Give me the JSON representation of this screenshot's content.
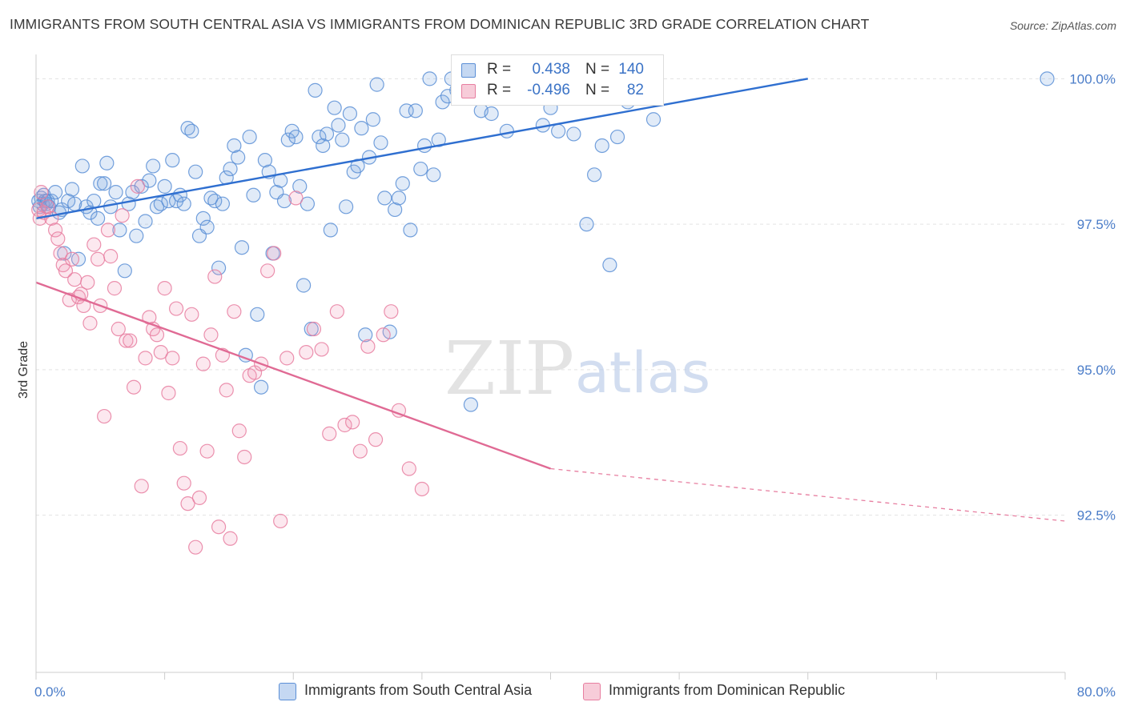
{
  "header": {
    "title": "IMMIGRANTS FROM SOUTH CENTRAL ASIA VS IMMIGRANTS FROM DOMINICAN REPUBLIC 3RD GRADE CORRELATION CHART",
    "source": "Source: ZipAtlas.com"
  },
  "watermark": {
    "zip": "ZIP",
    "atlas": "atlas"
  },
  "legend": {
    "r_label": "R =",
    "n_label": "N =",
    "series": [
      {
        "r": "0.438",
        "n": "140",
        "color": "#5b8fd6"
      },
      {
        "r": "-0.496",
        "n": "82",
        "color": "#e77ea0"
      }
    ]
  },
  "chart_data": {
    "type": "scatter",
    "xlabel": "",
    "ylabel": "3rd Grade",
    "xlim": [
      0,
      80
    ],
    "ylim": [
      89.8,
      100.5
    ],
    "x_tick_labels": [
      "0.0%",
      "80.0%"
    ],
    "y_ticks": [
      92.5,
      95.0,
      97.5,
      100.0
    ],
    "y_tick_labels": [
      "92.5%",
      "95.0%",
      "97.5%",
      "100.0%"
    ],
    "grid": true,
    "legend_position": "top-center",
    "series": [
      {
        "name": "Immigrants from South Central Asia",
        "color": "#5b8fd6",
        "trend": {
          "x": [
            0,
            60
          ],
          "y": [
            97.6,
            100.0
          ]
        },
        "points": [
          [
            0.2,
            97.9
          ],
          [
            0.3,
            97.8
          ],
          [
            0.4,
            97.95
          ],
          [
            0.5,
            97.85
          ],
          [
            0.6,
            98.0
          ],
          [
            0.7,
            97.9
          ],
          [
            0.8,
            97.85
          ],
          [
            0.9,
            97.9
          ],
          [
            1.0,
            97.8
          ],
          [
            1.2,
            97.9
          ],
          [
            1.5,
            98.05
          ],
          [
            1.8,
            97.7
          ],
          [
            2.0,
            97.75
          ],
          [
            2.2,
            97.0
          ],
          [
            2.5,
            97.9
          ],
          [
            2.8,
            98.1
          ],
          [
            3.0,
            97.85
          ],
          [
            3.3,
            96.9
          ],
          [
            3.6,
            98.5
          ],
          [
            3.9,
            97.8
          ],
          [
            4.2,
            97.7
          ],
          [
            4.5,
            97.9
          ],
          [
            4.8,
            97.6
          ],
          [
            5.0,
            98.2
          ],
          [
            5.3,
            98.2
          ],
          [
            5.5,
            98.55
          ],
          [
            5.8,
            97.8
          ],
          [
            6.2,
            98.05
          ],
          [
            6.5,
            97.4
          ],
          [
            6.9,
            96.7
          ],
          [
            7.2,
            97.85
          ],
          [
            7.5,
            98.05
          ],
          [
            7.8,
            97.3
          ],
          [
            8.2,
            98.15
          ],
          [
            8.5,
            97.55
          ],
          [
            8.8,
            98.25
          ],
          [
            9.1,
            98.5
          ],
          [
            9.4,
            97.8
          ],
          [
            9.7,
            97.85
          ],
          [
            10.0,
            98.15
          ],
          [
            10.3,
            97.9
          ],
          [
            10.6,
            98.6
          ],
          [
            10.9,
            97.9
          ],
          [
            11.2,
            98.0
          ],
          [
            11.5,
            97.85
          ],
          [
            11.8,
            99.15
          ],
          [
            12.1,
            99.1
          ],
          [
            12.4,
            98.4
          ],
          [
            12.7,
            97.3
          ],
          [
            13.0,
            97.6
          ],
          [
            13.3,
            97.45
          ],
          [
            13.6,
            97.95
          ],
          [
            13.9,
            97.9
          ],
          [
            14.2,
            96.75
          ],
          [
            14.5,
            97.85
          ],
          [
            14.8,
            98.3
          ],
          [
            15.1,
            98.45
          ],
          [
            15.4,
            98.85
          ],
          [
            15.7,
            98.65
          ],
          [
            16.0,
            97.1
          ],
          [
            16.3,
            95.25
          ],
          [
            16.6,
            99.0
          ],
          [
            16.9,
            98.0
          ],
          [
            17.2,
            95.95
          ],
          [
            17.5,
            94.7
          ],
          [
            17.8,
            98.6
          ],
          [
            18.1,
            98.4
          ],
          [
            18.4,
            97.0
          ],
          [
            18.7,
            98.05
          ],
          [
            19.0,
            98.25
          ],
          [
            19.3,
            97.9
          ],
          [
            19.6,
            98.95
          ],
          [
            19.9,
            99.1
          ],
          [
            20.2,
            99.0
          ],
          [
            20.5,
            98.15
          ],
          [
            20.8,
            96.45
          ],
          [
            21.1,
            97.85
          ],
          [
            21.4,
            95.7
          ],
          [
            21.7,
            99.8
          ],
          [
            22.0,
            99.0
          ],
          [
            22.3,
            98.85
          ],
          [
            22.6,
            99.05
          ],
          [
            22.9,
            97.4
          ],
          [
            23.2,
            99.5
          ],
          [
            23.5,
            99.2
          ],
          [
            23.8,
            98.95
          ],
          [
            24.1,
            97.8
          ],
          [
            24.4,
            99.4
          ],
          [
            24.7,
            98.4
          ],
          [
            25.0,
            98.5
          ],
          [
            25.3,
            99.15
          ],
          [
            25.6,
            95.6
          ],
          [
            25.9,
            98.65
          ],
          [
            26.2,
            99.3
          ],
          [
            26.5,
            99.9
          ],
          [
            26.8,
            98.9
          ],
          [
            27.1,
            97.95
          ],
          [
            27.5,
            95.65
          ],
          [
            27.9,
            97.75
          ],
          [
            28.2,
            97.95
          ],
          [
            28.5,
            98.2
          ],
          [
            28.8,
            99.45
          ],
          [
            29.1,
            97.4
          ],
          [
            29.5,
            99.45
          ],
          [
            29.9,
            98.45
          ],
          [
            30.2,
            98.85
          ],
          [
            30.6,
            100.0
          ],
          [
            30.9,
            98.35
          ],
          [
            31.3,
            98.95
          ],
          [
            31.6,
            99.6
          ],
          [
            32.0,
            99.7
          ],
          [
            32.3,
            100.0
          ],
          [
            32.7,
            99.8
          ],
          [
            33.0,
            100.0
          ],
          [
            33.4,
            100.0
          ],
          [
            33.8,
            94.4
          ],
          [
            34.2,
            100.0
          ],
          [
            34.6,
            99.45
          ],
          [
            35.0,
            100.0
          ],
          [
            35.4,
            99.4
          ],
          [
            36.0,
            99.95
          ],
          [
            36.6,
            99.1
          ],
          [
            37.4,
            99.8
          ],
          [
            38.2,
            99.9
          ],
          [
            38.8,
            100.0
          ],
          [
            39.4,
            99.2
          ],
          [
            40.0,
            99.5
          ],
          [
            40.6,
            99.1
          ],
          [
            41.2,
            99.9
          ],
          [
            41.8,
            99.05
          ],
          [
            42.2,
            99.9
          ],
          [
            42.8,
            97.5
          ],
          [
            43.4,
            98.35
          ],
          [
            44.0,
            98.85
          ],
          [
            44.6,
            96.8
          ],
          [
            45.2,
            99.0
          ],
          [
            46.0,
            99.6
          ],
          [
            47.0,
            99.7
          ],
          [
            48.0,
            99.3
          ],
          [
            78.6,
            100.0
          ]
        ]
      },
      {
        "name": "Immigrants from Dominican Republic",
        "color": "#e77ea0",
        "trend": {
          "x": [
            0,
            40
          ],
          "y": [
            96.5,
            93.3
          ]
        },
        "trend_extension": {
          "x": [
            40,
            80
          ],
          "y": [
            93.3,
            92.4
          ]
        },
        "points": [
          [
            0.2,
            97.75
          ],
          [
            0.3,
            97.6
          ],
          [
            0.4,
            98.05
          ],
          [
            0.6,
            97.7
          ],
          [
            0.9,
            97.8
          ],
          [
            1.2,
            97.6
          ],
          [
            1.5,
            97.4
          ],
          [
            1.7,
            97.25
          ],
          [
            1.9,
            97.0
          ],
          [
            2.1,
            96.8
          ],
          [
            2.3,
            96.7
          ],
          [
            2.6,
            96.2
          ],
          [
            2.8,
            96.9
          ],
          [
            3.0,
            96.55
          ],
          [
            3.3,
            96.25
          ],
          [
            3.5,
            96.3
          ],
          [
            3.7,
            96.1
          ],
          [
            4.0,
            96.5
          ],
          [
            4.2,
            95.8
          ],
          [
            4.5,
            97.15
          ],
          [
            4.8,
            96.9
          ],
          [
            5.0,
            96.1
          ],
          [
            5.3,
            94.2
          ],
          [
            5.6,
            97.4
          ],
          [
            5.8,
            96.95
          ],
          [
            6.1,
            96.4
          ],
          [
            6.4,
            95.7
          ],
          [
            6.7,
            97.65
          ],
          [
            7.0,
            95.5
          ],
          [
            7.3,
            95.5
          ],
          [
            7.6,
            94.7
          ],
          [
            7.9,
            98.15
          ],
          [
            8.2,
            93.0
          ],
          [
            8.5,
            95.2
          ],
          [
            8.8,
            95.9
          ],
          [
            9.1,
            95.7
          ],
          [
            9.4,
            95.6
          ],
          [
            9.7,
            95.3
          ],
          [
            10.0,
            96.4
          ],
          [
            10.3,
            94.6
          ],
          [
            10.6,
            95.2
          ],
          [
            10.9,
            96.05
          ],
          [
            11.2,
            93.65
          ],
          [
            11.5,
            93.05
          ],
          [
            11.8,
            92.7
          ],
          [
            12.1,
            95.95
          ],
          [
            12.4,
            91.95
          ],
          [
            12.7,
            92.8
          ],
          [
            13.0,
            95.1
          ],
          [
            13.3,
            93.6
          ],
          [
            13.6,
            95.6
          ],
          [
            13.9,
            96.6
          ],
          [
            14.2,
            92.3
          ],
          [
            14.5,
            95.25
          ],
          [
            14.8,
            94.65
          ],
          [
            15.1,
            92.1
          ],
          [
            15.4,
            96.0
          ],
          [
            15.8,
            93.95
          ],
          [
            16.2,
            93.5
          ],
          [
            16.6,
            94.9
          ],
          [
            17.0,
            94.95
          ],
          [
            17.5,
            95.1
          ],
          [
            18.0,
            96.7
          ],
          [
            18.5,
            97.0
          ],
          [
            19.0,
            92.4
          ],
          [
            19.5,
            95.2
          ],
          [
            20.2,
            97.95
          ],
          [
            21.0,
            95.3
          ],
          [
            21.6,
            95.7
          ],
          [
            22.2,
            95.35
          ],
          [
            22.8,
            93.9
          ],
          [
            23.4,
            96.0
          ],
          [
            24.0,
            94.05
          ],
          [
            24.6,
            94.1
          ],
          [
            25.2,
            93.6
          ],
          [
            25.8,
            95.4
          ],
          [
            26.4,
            93.8
          ],
          [
            27.0,
            95.6
          ],
          [
            27.6,
            96.0
          ],
          [
            28.2,
            94.3
          ],
          [
            29.0,
            93.3
          ],
          [
            30.0,
            92.95
          ]
        ]
      }
    ]
  },
  "bottom_legend": [
    {
      "label": "Immigrants from South Central Asia"
    },
    {
      "label": "Immigrants from Dominican Republic"
    }
  ]
}
